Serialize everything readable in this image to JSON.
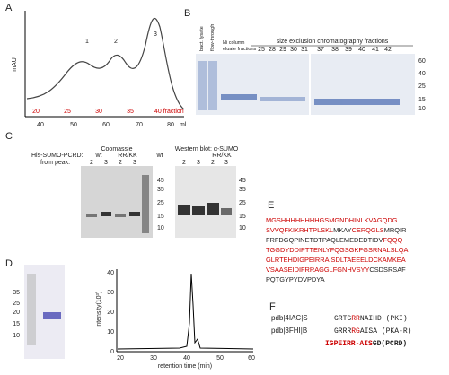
{
  "A": {
    "letter": "A",
    "y_label": "mAU",
    "peaks": [
      "1",
      "2",
      "3"
    ],
    "x_ticks": [
      "40",
      "50",
      "60",
      "70",
      "80"
    ],
    "x_unit": "ml",
    "fractions": [
      "20",
      "25",
      "30",
      "35"
    ],
    "fraction_last": "40 fraction"
  },
  "B": {
    "letter": "B",
    "lane_labels": [
      "bact. lysate",
      "flow-through"
    ],
    "ni_label": [
      "Ni column",
      "eluate fractions"
    ],
    "sec_label": "size exclusion chromatography fractions",
    "fractions": [
      "25",
      "28",
      "29",
      "30",
      "31",
      "37",
      "38",
      "39",
      "40",
      "41",
      "42"
    ],
    "markers": [
      "60",
      "40",
      "25",
      "15",
      "10"
    ]
  },
  "C": {
    "letter": "C",
    "construct": "His-SUMO-PCRD:",
    "from_peak": "from peak:",
    "coomassie": "Coomassie",
    "western": "Western blot: α-SUMO",
    "groups": [
      "wt",
      "RR/KK"
    ],
    "peaks": [
      "2",
      "3"
    ],
    "markers": [
      "45",
      "35",
      "25",
      "15",
      "10"
    ]
  },
  "D": {
    "letter": "D",
    "gel_markers": [
      "35",
      "25",
      "20",
      "15",
      "10"
    ],
    "y_label": "intensity(10³)",
    "y_ticks": [
      "0",
      "10",
      "20",
      "30",
      "40"
    ],
    "x_ticks": [
      "20",
      "30",
      "40",
      "50",
      "60"
    ],
    "x_label": "retention time (min)"
  },
  "E": {
    "letter": "E",
    "lines": [
      [
        {
          "text": "MGSHHHHHHHHGSMGNDHINLKVAGQDG",
          "red": true
        }
      ],
      [
        {
          "text": "SVVQFKIKRHTPLSKL",
          "red": true
        },
        {
          "text": "MKAY",
          "red": false
        },
        {
          "text": "CERQGLS",
          "red": true
        },
        {
          "text": "MRQIR",
          "red": false
        }
      ],
      [
        {
          "text": "FRFDGQPINETDTPAQLEMEDEDTIDV",
          "red": false
        },
        {
          "text": "FQQQ",
          "red": true
        }
      ],
      [
        {
          "text": "TGGDYDDIPTTENLYFQGSGKPGSRNALSLQA",
          "red": true
        }
      ],
      [
        {
          "text": "GLRTEHDIGPEIRRAISDLTAEEELDCKAMKEA",
          "red": true
        }
      ],
      [
        {
          "text": "VSAASEIDIFRRAGGLFGNHVSYY",
          "red": true
        },
        {
          "text": "CSDSRSAF",
          "red": false
        }
      ],
      [
        {
          "text": "PQTGYPYDVPDYA",
          "red": false
        }
      ]
    ]
  },
  "F": {
    "letter": "F",
    "rows": [
      {
        "name": "pdb|4IAC|S",
        "seq": [
          {
            "text": "GRTG",
            "red": false
          },
          {
            "text": "RR",
            "red": true
          },
          {
            "text": "NAIHD (PKI)",
            "red": false
          }
        ]
      },
      {
        "name": "pdb|3FHI|B",
        "seq": [
          {
            "text": "GRRR",
            "red": false
          },
          {
            "text": "RG",
            "red": true
          },
          {
            "text": "AISA (PKA-R)",
            "red": false
          }
        ]
      },
      {
        "name": "",
        "seq": [
          {
            "text": "IGPEIRR-AIS",
            "red": true
          },
          {
            "text": "GD(PCRD)",
            "red": false
          }
        ]
      }
    ]
  }
}
